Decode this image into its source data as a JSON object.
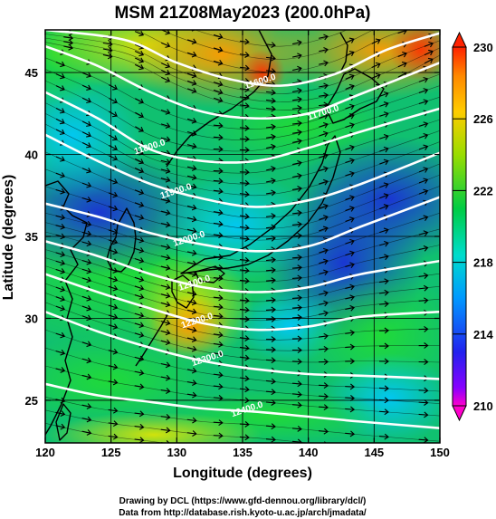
{
  "chart_data": {
    "type": "heatmap",
    "title": "MSM 21Z08May2023 (200.0hPa)",
    "xlabel": "Longitude (degrees)",
    "ylabel": "Latitude  (degrees)",
    "xlim": [
      120,
      150
    ],
    "ylim": [
      22.4,
      47.6
    ],
    "x_ticks": [
      "120",
      "125",
      "130",
      "135",
      "140",
      "145",
      "150"
    ],
    "y_ticks": [
      "25",
      "30",
      "35",
      "40",
      "45"
    ],
    "colorbar": {
      "range": [
        210,
        230
      ],
      "ticks": [
        "210",
        "214",
        "218",
        "222",
        "226",
        "230"
      ]
    },
    "contour_labels": [
      {
        "text": "11600.0",
        "lon": 136.4,
        "lat": 44.3
      },
      {
        "text": "11700.0",
        "lon": 141.2,
        "lat": 42.4
      },
      {
        "text": "11800.0",
        "lon": 128.0,
        "lat": 40.3
      },
      {
        "text": "11900.0",
        "lon": 130.0,
        "lat": 37.6
      },
      {
        "text": "12000.0",
        "lon": 131.0,
        "lat": 34.7
      },
      {
        "text": "12100.0",
        "lon": 131.4,
        "lat": 32.0
      },
      {
        "text": "12200.0",
        "lon": 131.6,
        "lat": 29.7
      },
      {
        "text": "12300.0",
        "lon": 132.4,
        "lat": 27.4
      },
      {
        "text": "12400.0",
        "lon": 135.4,
        "lat": 24.3
      }
    ],
    "contours": [
      {
        "value": 11600,
        "points": [
          [
            120,
            47.6
          ],
          [
            126,
            47.0
          ],
          [
            130,
            45.6
          ],
          [
            134,
            44.6
          ],
          [
            138,
            44.2
          ],
          [
            142,
            44.9
          ],
          [
            146,
            46.4
          ],
          [
            150,
            47.4
          ]
        ]
      },
      {
        "value": 11700,
        "points": [
          [
            120,
            46.6
          ],
          [
            124,
            45.4
          ],
          [
            128,
            43.8
          ],
          [
            132,
            42.6
          ],
          [
            136,
            42.2
          ],
          [
            140,
            42.5
          ],
          [
            144,
            43.7
          ],
          [
            150,
            45.6
          ]
        ]
      },
      {
        "value": 11800,
        "points": [
          [
            120,
            43.8
          ],
          [
            124,
            42.2
          ],
          [
            128,
            40.3
          ],
          [
            132,
            39.6
          ],
          [
            136,
            39.6
          ],
          [
            140,
            40.4
          ],
          [
            144,
            41.4
          ],
          [
            150,
            42.8
          ]
        ]
      },
      {
        "value": 11900,
        "points": [
          [
            120,
            41.2
          ],
          [
            124,
            39.6
          ],
          [
            128,
            38.2
          ],
          [
            132,
            37.3
          ],
          [
            136,
            36.8
          ],
          [
            140,
            37.2
          ],
          [
            144,
            38.2
          ],
          [
            150,
            40.1
          ]
        ]
      },
      {
        "value": 12000,
        "points": [
          [
            120,
            37.0
          ],
          [
            124,
            36.2
          ],
          [
            128,
            35.2
          ],
          [
            132,
            34.5
          ],
          [
            136,
            34.1
          ],
          [
            140,
            34.4
          ],
          [
            144,
            35.6
          ],
          [
            150,
            37.4
          ]
        ]
      },
      {
        "value": 12100,
        "points": [
          [
            120,
            34.7
          ],
          [
            124,
            33.8
          ],
          [
            128,
            32.7
          ],
          [
            132,
            31.9
          ],
          [
            136,
            31.6
          ],
          [
            140,
            31.9
          ],
          [
            144,
            32.7
          ],
          [
            150,
            33.5
          ]
        ]
      },
      {
        "value": 12200,
        "points": [
          [
            120,
            32.7
          ],
          [
            124,
            31.6
          ],
          [
            128,
            30.6
          ],
          [
            132,
            29.7
          ],
          [
            136,
            29.3
          ],
          [
            140,
            29.5
          ],
          [
            144,
            30.1
          ],
          [
            150,
            30.4
          ]
        ]
      },
      {
        "value": 12300,
        "points": [
          [
            120,
            30.4
          ],
          [
            124,
            29.2
          ],
          [
            128,
            28.2
          ],
          [
            132,
            27.4
          ],
          [
            136,
            26.9
          ],
          [
            140,
            26.6
          ],
          [
            144,
            26.5
          ],
          [
            150,
            26.3
          ]
        ]
      },
      {
        "value": 12400,
        "points": [
          [
            120,
            26.0
          ],
          [
            124,
            25.3
          ],
          [
            128,
            24.9
          ],
          [
            132,
            24.5
          ],
          [
            136,
            24.3
          ],
          [
            140,
            24.0
          ],
          [
            144,
            23.7
          ],
          [
            150,
            23.3
          ]
        ]
      }
    ]
  },
  "credit": {
    "line1": "Drawing by DCL (https://www.gfd-dennou.org/library/dcl/)",
    "line2": "Data from http://database.rish.kyoto-u.ac.jp/arch/jmadata/"
  },
  "colors": {
    "contour": "#ffffff",
    "vector": "#000000",
    "frame": "#000000"
  }
}
